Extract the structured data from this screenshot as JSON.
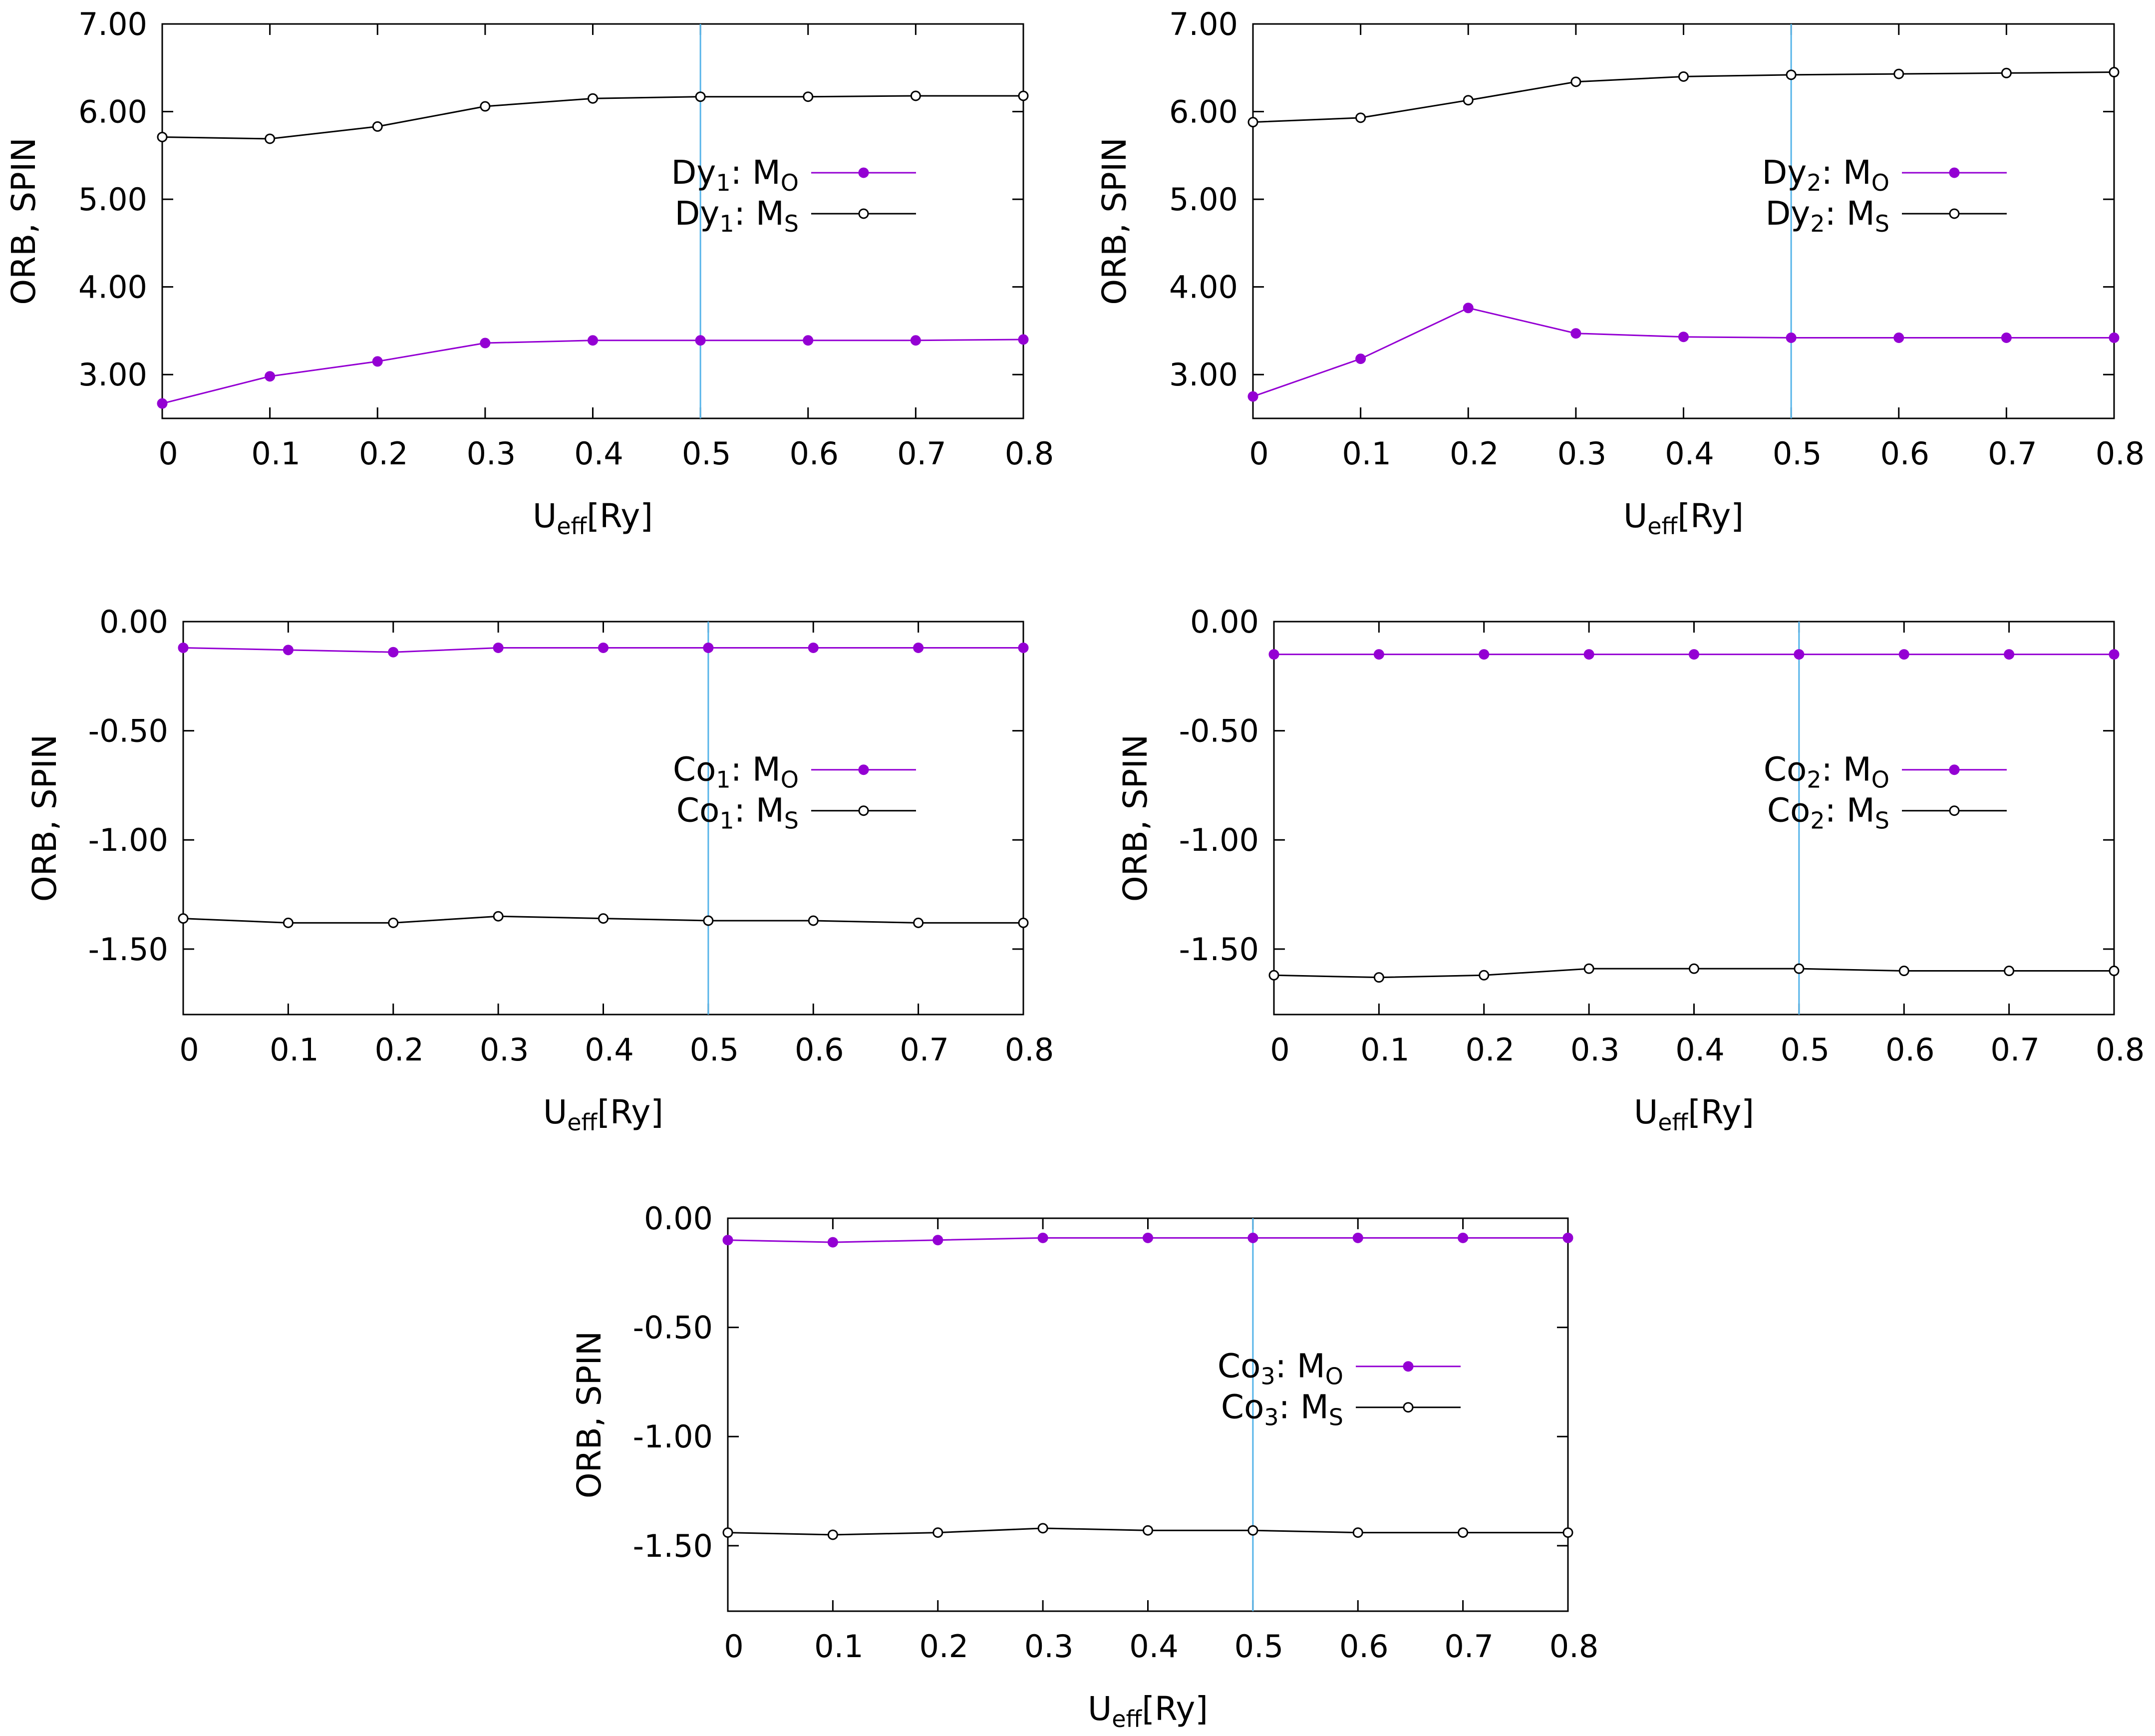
{
  "chart_data": [
    {
      "type": "line",
      "panel": "dy1",
      "xlabel": "U",
      "xlabel_sub": "eff",
      "xlabel_suffix": "[Ry]",
      "ylabel": "ORB, SPIN",
      "xlim": [
        0,
        0.8
      ],
      "ylim": [
        2.5,
        7.0
      ],
      "x": [
        0,
        0.1,
        0.2,
        0.3,
        0.4,
        0.5,
        0.6,
        0.7,
        0.8
      ],
      "x_tick_labels": [
        "0",
        "0.1",
        "0.2",
        "0.3",
        "0.4",
        "0.5",
        "0.6",
        "0.7",
        "0.8"
      ],
      "y_ticks": [
        3.0,
        4.0,
        5.0,
        6.0,
        7.0
      ],
      "y_tick_labels": [
        "3.00",
        "4.00",
        "5.00",
        "6.00",
        "7.00"
      ],
      "vline_x": 0.5,
      "legend_position": "right",
      "series": [
        {
          "name": "Dy1: MO",
          "label_main": "Dy",
          "label_sub": "1",
          "label_mid": ": M",
          "label_sub2": "O",
          "marker": "filled",
          "values": [
            2.67,
            2.98,
            3.15,
            3.36,
            3.39,
            3.39,
            3.39,
            3.39,
            3.4
          ]
        },
        {
          "name": "Dy1: MS",
          "label_main": "Dy",
          "label_sub": "1",
          "label_mid": ": M",
          "label_sub2": "S",
          "marker": "open",
          "values": [
            5.71,
            5.69,
            5.83,
            6.06,
            6.15,
            6.17,
            6.17,
            6.18,
            6.18
          ]
        }
      ]
    },
    {
      "type": "line",
      "panel": "dy2",
      "xlabel": "U",
      "xlabel_sub": "eff",
      "xlabel_suffix": "[Ry]",
      "ylabel": "ORB, SPIN",
      "xlim": [
        0,
        0.8
      ],
      "ylim": [
        2.5,
        7.0
      ],
      "x": [
        0,
        0.1,
        0.2,
        0.3,
        0.4,
        0.5,
        0.6,
        0.7,
        0.8
      ],
      "x_tick_labels": [
        "0",
        "0.1",
        "0.2",
        "0.3",
        "0.4",
        "0.5",
        "0.6",
        "0.7",
        "0.8"
      ],
      "y_ticks": [
        3.0,
        4.0,
        5.0,
        6.0,
        7.0
      ],
      "y_tick_labels": [
        "3.00",
        "4.00",
        "5.00",
        "6.00",
        "7.00"
      ],
      "vline_x": 0.5,
      "legend_position": "right",
      "series": [
        {
          "name": "Dy2: MO",
          "label_main": "Dy",
          "label_sub": "2",
          "label_mid": ": M",
          "label_sub2": "O",
          "marker": "filled",
          "values": [
            2.75,
            3.18,
            3.76,
            3.47,
            3.43,
            3.42,
            3.42,
            3.42,
            3.42
          ]
        },
        {
          "name": "Dy2: MS",
          "label_main": "Dy",
          "label_sub": "2",
          "label_mid": ": M",
          "label_sub2": "S",
          "marker": "open",
          "values": [
            5.88,
            5.93,
            6.13,
            6.34,
            6.4,
            6.42,
            6.43,
            6.44,
            6.45
          ]
        }
      ]
    },
    {
      "type": "line",
      "panel": "co1",
      "xlabel": "U",
      "xlabel_sub": "eff",
      "xlabel_suffix": "[Ry]",
      "ylabel": "ORB, SPIN",
      "xlim": [
        0,
        0.8
      ],
      "ylim": [
        -1.8,
        0.0
      ],
      "x": [
        0,
        0.1,
        0.2,
        0.3,
        0.4,
        0.5,
        0.6,
        0.7,
        0.8
      ],
      "x_tick_labels": [
        "0",
        "0.1",
        "0.2",
        "0.3",
        "0.4",
        "0.5",
        "0.6",
        "0.7",
        "0.8"
      ],
      "y_ticks": [
        -1.5,
        -1.0,
        -0.5,
        0.0
      ],
      "y_tick_labels": [
        "-1.50",
        "-1.00",
        "-0.50",
        "0.00"
      ],
      "vline_x": 0.5,
      "legend_position": "right",
      "series": [
        {
          "name": "Co1: MO",
          "label_main": "Co",
          "label_sub": "1",
          "label_mid": ": M",
          "label_sub2": "O",
          "marker": "filled",
          "values": [
            -0.12,
            -0.13,
            -0.14,
            -0.12,
            -0.12,
            -0.12,
            -0.12,
            -0.12,
            -0.12
          ]
        },
        {
          "name": "Co1: MS",
          "label_main": "Co",
          "label_sub": "1",
          "label_mid": ": M",
          "label_sub2": "S",
          "marker": "open",
          "values": [
            -1.36,
            -1.38,
            -1.38,
            -1.35,
            -1.36,
            -1.37,
            -1.37,
            -1.38,
            -1.38
          ]
        }
      ]
    },
    {
      "type": "line",
      "panel": "co2",
      "xlabel": "U",
      "xlabel_sub": "eff",
      "xlabel_suffix": "[Ry]",
      "ylabel": "ORB, SPIN",
      "xlim": [
        0,
        0.8
      ],
      "ylim": [
        -1.8,
        0.0
      ],
      "x": [
        0,
        0.1,
        0.2,
        0.3,
        0.4,
        0.5,
        0.6,
        0.7,
        0.8
      ],
      "x_tick_labels": [
        "0",
        "0.1",
        "0.2",
        "0.3",
        "0.4",
        "0.5",
        "0.6",
        "0.7",
        "0.8"
      ],
      "y_ticks": [
        -1.5,
        -1.0,
        -0.5,
        0.0
      ],
      "y_tick_labels": [
        "-1.50",
        "-1.00",
        "-0.50",
        "0.00"
      ],
      "vline_x": 0.5,
      "legend_position": "right",
      "series": [
        {
          "name": "Co2: MO",
          "label_main": "Co",
          "label_sub": "2",
          "label_mid": ": M",
          "label_sub2": "O",
          "marker": "filled",
          "values": [
            -0.15,
            -0.15,
            -0.15,
            -0.15,
            -0.15,
            -0.15,
            -0.15,
            -0.15,
            -0.15
          ]
        },
        {
          "name": "Co2: MS",
          "label_main": "Co",
          "label_sub": "2",
          "label_mid": ": M",
          "label_sub2": "S",
          "marker": "open",
          "values": [
            -1.62,
            -1.63,
            -1.62,
            -1.59,
            -1.59,
            -1.59,
            -1.6,
            -1.6,
            -1.6
          ]
        }
      ]
    },
    {
      "type": "line",
      "panel": "co3",
      "xlabel": "U",
      "xlabel_sub": "eff",
      "xlabel_suffix": "[Ry]",
      "ylabel": "ORB, SPIN",
      "xlim": [
        0,
        0.8
      ],
      "ylim": [
        -1.8,
        0.0
      ],
      "x": [
        0,
        0.1,
        0.2,
        0.3,
        0.4,
        0.5,
        0.6,
        0.7,
        0.8
      ],
      "x_tick_labels": [
        "0",
        "0.1",
        "0.2",
        "0.3",
        "0.4",
        "0.5",
        "0.6",
        "0.7",
        "0.8"
      ],
      "y_ticks": [
        -1.5,
        -1.0,
        -0.5,
        0.0
      ],
      "y_tick_labels": [
        "-1.50",
        "-1.00",
        "-0.50",
        "0.00"
      ],
      "vline_x": 0.5,
      "legend_position": "right",
      "series": [
        {
          "name": "Co3: MO",
          "label_main": "Co",
          "label_sub": "3",
          "label_mid": ": M",
          "label_sub2": "O",
          "marker": "filled",
          "values": [
            -0.1,
            -0.11,
            -0.1,
            -0.09,
            -0.09,
            -0.09,
            -0.09,
            -0.09,
            -0.09
          ]
        },
        {
          "name": "Co3: MS",
          "label_main": "Co",
          "label_sub": "3",
          "label_mid": ": M",
          "label_sub2": "S",
          "marker": "open",
          "values": [
            -1.44,
            -1.45,
            -1.44,
            -1.42,
            -1.43,
            -1.43,
            -1.44,
            -1.44,
            -1.44
          ]
        }
      ]
    }
  ],
  "colors": {
    "orbital": "#9400d3",
    "spin": "#000000",
    "vline": "#56b4e9",
    "axes": "#000000",
    "background": "#ffffff"
  }
}
